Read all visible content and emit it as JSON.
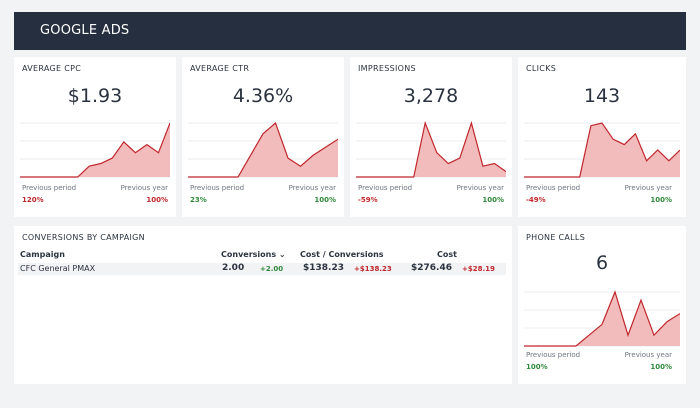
{
  "header": {
    "title": "GOOGLE ADS"
  },
  "colors": {
    "header_bg": "#252f3f",
    "chart_line": "#c0262c",
    "chart_fill": "#f2bcbc",
    "negative": "#c0262c",
    "positive": "#2f8a3a"
  },
  "labels": {
    "previous_period": "Previous period",
    "previous_year": "Previous year"
  },
  "metrics": [
    {
      "label": "AVERAGE CPC",
      "value": "$1.93",
      "prev_period_change": "120%",
      "prev_year_change": "100%"
    },
    {
      "label": "AVERAGE CTR",
      "value": "4.36%",
      "prev_period_change": "23%",
      "prev_year_change": "100%"
    },
    {
      "label": "IMPRESSIONS",
      "value": "3,278",
      "prev_period_change": "-59%",
      "prev_year_change": "100%"
    },
    {
      "label": "CLICKS",
      "value": "143",
      "prev_period_change": "-49%",
      "prev_year_change": "100%"
    },
    {
      "label": "PHONE CALLS",
      "value": "6",
      "prev_period_change": "100%",
      "prev_year_change": "100%"
    }
  ],
  "conversions": {
    "title": "CONVERSIONS BY CAMPAIGN",
    "columns": {
      "campaign": "Campaign",
      "conversions": "Conversions",
      "cost_per_conversion": "Cost / Conversions",
      "cost": "Cost"
    },
    "sort_icon": "chevron-down-icon",
    "rows": [
      {
        "campaign": "CFC General PMAX",
        "conversions": "2.00",
        "conversions_delta": "+2.00",
        "cost_per_conversion": "$138.23",
        "cost_per_conversion_delta": "+$138.23",
        "cost": "$276.46",
        "cost_delta": "+$28.19"
      }
    ]
  },
  "chart_data": [
    {
      "type": "area",
      "series": [
        {
          "values": [
            0,
            0,
            0,
            0,
            0,
            0,
            0.2,
            0.25,
            0.35,
            0.65,
            0.45,
            0.6,
            0.45,
            1.0
          ]
        }
      ]
    },
    {
      "type": "area",
      "series": [
        {
          "values": [
            0,
            0,
            0,
            0,
            0,
            0.4,
            0.8,
            1.0,
            0.35,
            0.2,
            0.4,
            0.55,
            0.7
          ]
        }
      ]
    },
    {
      "type": "area",
      "series": [
        {
          "values": [
            0,
            0,
            0,
            0,
            0,
            0,
            1.0,
            0.45,
            0.25,
            0.35,
            1.0,
            0.2,
            0.25,
            0.1
          ]
        }
      ]
    },
    {
      "type": "area",
      "series": [
        {
          "values": [
            0,
            0,
            0,
            0,
            0,
            0,
            0.95,
            1.0,
            0.7,
            0.6,
            0.8,
            0.3,
            0.5,
            0.3,
            0.5
          ]
        }
      ]
    },
    {
      "type": "area",
      "series": [
        {
          "values": [
            0,
            0,
            0,
            0,
            0,
            0.2,
            0.4,
            1.0,
            0.2,
            0.85,
            0.2,
            0.45,
            0.6
          ]
        }
      ]
    }
  ]
}
